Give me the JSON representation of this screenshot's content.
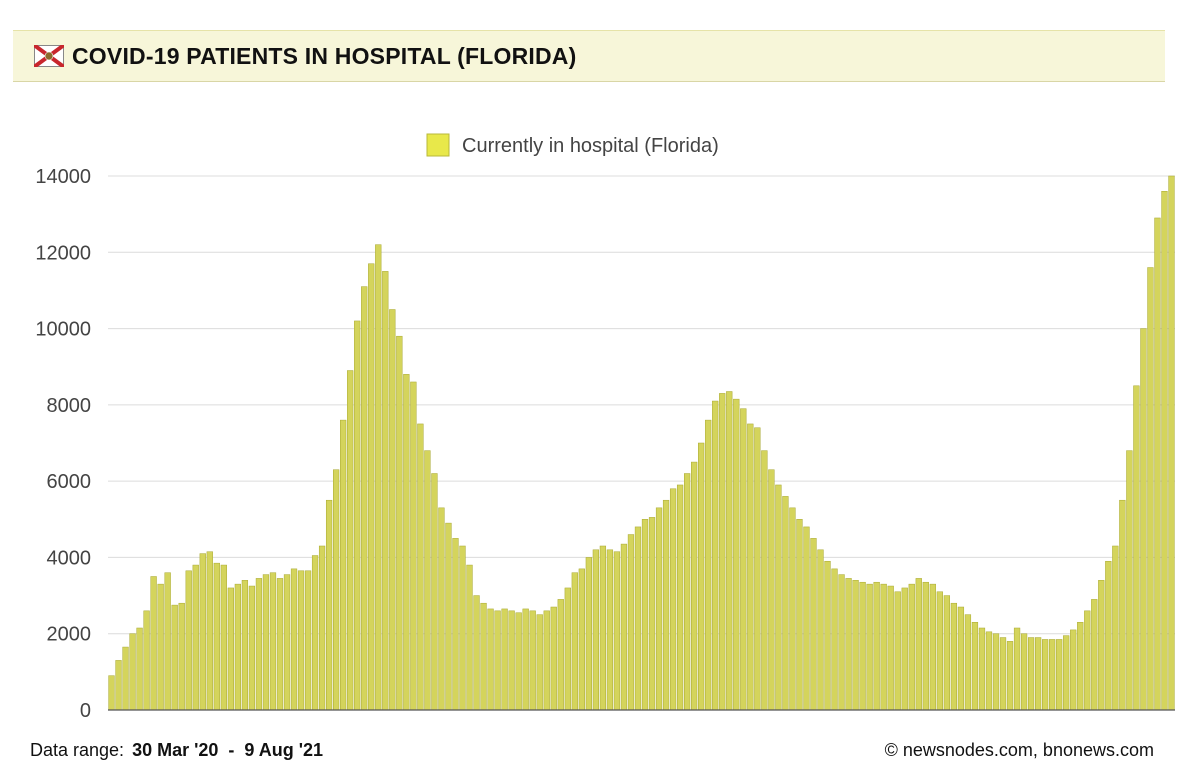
{
  "header": {
    "title": "COVID-19 PATIENTS IN HOSPITAL (FLORIDA)",
    "flag_icon": "florida-flag-icon"
  },
  "footer": {
    "range_label": "Data range:",
    "range_value": "30 Mar '20  -  9 Aug '21",
    "credit": "© newsnodes.com, bnonews.com"
  },
  "colors": {
    "bar": "#d4d45c",
    "bar_edge": "#a8a830",
    "legend_swatch": "#e8e84a",
    "grid": "#dcdcdc",
    "header_bg": "#f7f6d9"
  },
  "chart_data": {
    "type": "bar",
    "title": "COVID-19 PATIENTS IN HOSPITAL (FLORIDA)",
    "legend": [
      "Currently in hospital (Florida)"
    ],
    "legend_position": "top-center",
    "grid": true,
    "xlabel": "",
    "ylabel": "",
    "ylim": [
      0,
      14000
    ],
    "yticks": [
      "0",
      "2000",
      "4000",
      "6000",
      "8000",
      "10000",
      "12000",
      "14000"
    ],
    "date_start": "30 Mar '20",
    "date_end": "9 Aug '21",
    "series": [
      {
        "name": "Currently in hospital (Florida)",
        "values": [
          900,
          1300,
          1650,
          2000,
          2150,
          2600,
          3500,
          3300,
          3600,
          2750,
          2800,
          3650,
          3800,
          4100,
          4150,
          3850,
          3800,
          3200,
          3300,
          3400,
          3250,
          3450,
          3550,
          3600,
          3450,
          3550,
          3700,
          3650,
          3650,
          4050,
          4300,
          5500,
          6300,
          7600,
          8900,
          10200,
          11100,
          11700,
          12200,
          11500,
          10500,
          9800,
          8800,
          8600,
          7500,
          6800,
          6200,
          5300,
          4900,
          4500,
          4300,
          3800,
          3000,
          2800,
          2650,
          2600,
          2650,
          2600,
          2550,
          2650,
          2600,
          2500,
          2600,
          2700,
          2900,
          3200,
          3600,
          3700,
          4000,
          4200,
          4300,
          4200,
          4150,
          4350,
          4600,
          4800,
          5000,
          5050,
          5300,
          5500,
          5800,
          5900,
          6200,
          6500,
          7000,
          7600,
          8100,
          8300,
          8350,
          8150,
          7900,
          7500,
          7400,
          6800,
          6300,
          5900,
          5600,
          5300,
          5000,
          4800,
          4500,
          4200,
          3900,
          3700,
          3550,
          3450,
          3400,
          3350,
          3300,
          3350,
          3300,
          3250,
          3100,
          3200,
          3300,
          3450,
          3350,
          3300,
          3100,
          3000,
          2800,
          2700,
          2500,
          2300,
          2150,
          2050,
          2000,
          1900,
          1800,
          2150,
          2000,
          1900,
          1900,
          1850,
          1850,
          1850,
          1950,
          2100,
          2300,
          2600,
          2900,
          3400,
          3900,
          4300,
          5500,
          6800,
          8500,
          10000,
          11600,
          12900,
          13600,
          14000
        ]
      }
    ]
  }
}
